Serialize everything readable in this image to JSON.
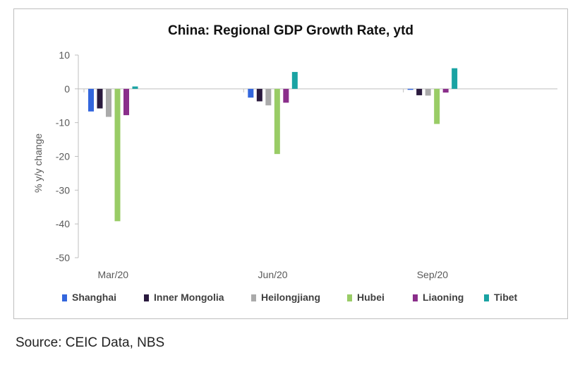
{
  "chart_data": {
    "type": "bar",
    "title": "China: Regional GDP Growth Rate, ytd",
    "xlabel": "",
    "ylabel": "% y/y change",
    "ylim": [
      -50,
      10
    ],
    "yticks": [
      10,
      0,
      -10,
      -20,
      -30,
      -40,
      -50
    ],
    "ytick_labels": [
      "10",
      "0",
      "-10",
      "-20",
      "-30",
      "-40",
      "-50"
    ],
    "categories": [
      "Mar/20",
      "Jun/20",
      "Sep/20"
    ],
    "grid": false,
    "legend_position": "bottom",
    "series": [
      {
        "name": "Shanghai",
        "color": "#3366dd",
        "values": [
          -6.7,
          -2.6,
          -0.3
        ]
      },
      {
        "name": "Inner Mongolia",
        "color": "#2a1a3e",
        "values": [
          -5.8,
          -3.7,
          -1.9
        ]
      },
      {
        "name": "Heilongjiang",
        "color": "#aaaaaa",
        "values": [
          -8.3,
          -4.9,
          -2.0
        ]
      },
      {
        "name": "Hubei",
        "color": "#99cc66",
        "values": [
          -39.2,
          -19.3,
          -10.4
        ]
      },
      {
        "name": "Liaoning",
        "color": "#8a2e8a",
        "values": [
          -7.8,
          -4.1,
          -1.1
        ]
      },
      {
        "name": "Tibet",
        "color": "#1aa3a3",
        "values": [
          0.7,
          5.0,
          6.1
        ]
      }
    ]
  },
  "source": "Source: CEIC Data, NBS"
}
